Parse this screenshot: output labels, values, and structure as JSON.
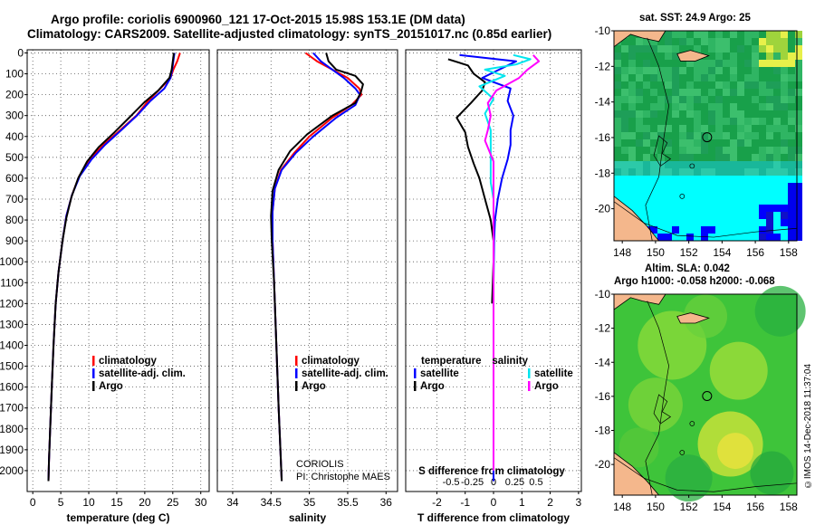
{
  "header": {
    "line1": "Argo profile: coriolis 6900960_121 17-Oct-2015 15.98S 153.1E (DM data)",
    "line2": "Climatology: CARS2009. Satellite-adjusted climatology: synTS_20151017.nc (0.85d earlier)"
  },
  "depth_ticks": [
    0,
    100,
    200,
    300,
    400,
    500,
    600,
    700,
    800,
    900,
    1000,
    1100,
    1200,
    1300,
    1400,
    1500,
    1600,
    1700,
    1800,
    1900,
    2000
  ],
  "colors": {
    "climatology": "#ff0000",
    "satellite": "#0000ff",
    "argo": "#000000",
    "sat_salinity": "#00e5ee",
    "argo_salinity": "#ff00ff",
    "land": "#f4b78c"
  },
  "chart_data": [
    {
      "type": "line",
      "name": "temperature",
      "xlabel": "temperature (deg C)",
      "xlim": [
        -1,
        31.5
      ],
      "ylim": [
        2100,
        -15
      ],
      "xticks": [
        0,
        5,
        10,
        15,
        20,
        25,
        30
      ],
      "legend": {
        "items": [
          {
            "label": "climatology",
            "color": "#ff0000"
          },
          {
            "label": "satellite-adj. clim.",
            "color": "#0000ff"
          },
          {
            "label": "Argo",
            "color": "#000000"
          }
        ]
      },
      "series": [
        {
          "name": "climatology",
          "color": "#ff0000",
          "points": [
            [
              26.3,
              0
            ],
            [
              25.8,
              40
            ],
            [
              25.1,
              80
            ],
            [
              24.6,
              120
            ],
            [
              22.8,
              170
            ],
            [
              20.6,
              230
            ],
            [
              18.5,
              300
            ],
            [
              15.6,
              370
            ],
            [
              12.6,
              440
            ],
            [
              10.2,
              510
            ],
            [
              8.3,
              590
            ],
            [
              7.0,
              680
            ],
            [
              6.0,
              780
            ],
            [
              5.3,
              900
            ],
            [
              4.6,
              1050
            ],
            [
              4.1,
              1200
            ],
            [
              3.7,
              1400
            ],
            [
              3.4,
              1600
            ],
            [
              3.1,
              1800
            ],
            [
              2.9,
              1950
            ],
            [
              2.8,
              2050
            ]
          ]
        },
        {
          "name": "satellite-adj. clim.",
          "color": "#0000ff",
          "points": [
            [
              25.3,
              0
            ],
            [
              25.1,
              40
            ],
            [
              24.9,
              80
            ],
            [
              24.6,
              120
            ],
            [
              23.5,
              170
            ],
            [
              21.0,
              230
            ],
            [
              18.6,
              300
            ],
            [
              15.8,
              370
            ],
            [
              12.9,
              440
            ],
            [
              10.5,
              510
            ],
            [
              8.4,
              590
            ],
            [
              7.0,
              680
            ],
            [
              6.0,
              780
            ],
            [
              5.3,
              900
            ],
            [
              4.6,
              1050
            ],
            [
              4.1,
              1200
            ],
            [
              3.7,
              1400
            ],
            [
              3.4,
              1600
            ],
            [
              3.1,
              1800
            ],
            [
              2.9,
              1950
            ],
            [
              2.8,
              2050
            ]
          ]
        },
        {
          "name": "Argo",
          "color": "#000000",
          "points": [
            [
              25.2,
              0
            ],
            [
              25.0,
              40
            ],
            [
              24.8,
              80
            ],
            [
              24.4,
              120
            ],
            [
              22.4,
              180
            ],
            [
              19.8,
              240
            ],
            [
              17.2,
              310
            ],
            [
              14.6,
              380
            ],
            [
              11.8,
              450
            ],
            [
              9.7,
              520
            ],
            [
              8.1,
              600
            ],
            [
              6.9,
              690
            ],
            [
              6.0,
              790
            ],
            [
              5.3,
              900
            ],
            [
              4.6,
              1050
            ],
            [
              4.1,
              1200
            ],
            [
              3.7,
              1400
            ],
            [
              3.4,
              1600
            ],
            [
              3.1,
              1800
            ],
            [
              2.9,
              1950
            ],
            [
              2.8,
              2050
            ]
          ]
        }
      ]
    },
    {
      "type": "line",
      "name": "salinity",
      "xlabel": "salinity",
      "xlim": [
        33.8,
        36.15
      ],
      "ylim": [
        2100,
        -15
      ],
      "xticks": [
        34,
        34.5,
        35,
        35.5,
        36
      ],
      "xticklabels": [
        "34",
        "34.5",
        "35",
        "35.5",
        "36"
      ],
      "legend": {
        "items": [
          {
            "label": "climatology",
            "color": "#ff0000"
          },
          {
            "label": "satellite-adj. clim.",
            "color": "#0000ff"
          },
          {
            "label": "Argo",
            "color": "#000000"
          }
        ]
      },
      "annotation": [
        "CORIOLIS",
        "PI: Christophe MAES"
      ],
      "series": [
        {
          "name": "climatology",
          "color": "#ff0000",
          "points": [
            [
              34.95,
              0
            ],
            [
              35.1,
              40
            ],
            [
              35.3,
              80
            ],
            [
              35.5,
              120
            ],
            [
              35.65,
              170
            ],
            [
              35.68,
              200
            ],
            [
              35.55,
              250
            ],
            [
              35.3,
              310
            ],
            [
              35.0,
              400
            ],
            [
              34.8,
              480
            ],
            [
              34.63,
              560
            ],
            [
              34.55,
              650
            ],
            [
              34.52,
              760
            ],
            [
              34.52,
              900
            ],
            [
              34.54,
              1100
            ],
            [
              34.57,
              1400
            ],
            [
              34.6,
              1700
            ],
            [
              34.64,
              2050
            ]
          ]
        },
        {
          "name": "satellite-adj. clim.",
          "color": "#0000ff",
          "points": [
            [
              35.05,
              0
            ],
            [
              35.15,
              40
            ],
            [
              35.3,
              80
            ],
            [
              35.45,
              120
            ],
            [
              35.6,
              170
            ],
            [
              35.66,
              200
            ],
            [
              35.6,
              250
            ],
            [
              35.35,
              310
            ],
            [
              35.05,
              400
            ],
            [
              34.82,
              480
            ],
            [
              34.64,
              560
            ],
            [
              34.55,
              650
            ],
            [
              34.52,
              760
            ],
            [
              34.52,
              900
            ],
            [
              34.54,
              1100
            ],
            [
              34.57,
              1400
            ],
            [
              34.6,
              1700
            ],
            [
              34.64,
              2050
            ]
          ]
        },
        {
          "name": "Argo",
          "color": "#000000",
          "points": [
            [
              35.22,
              0
            ],
            [
              35.25,
              40
            ],
            [
              35.35,
              80
            ],
            [
              35.6,
              110
            ],
            [
              35.7,
              150
            ],
            [
              35.67,
              190
            ],
            [
              35.6,
              240
            ],
            [
              35.3,
              300
            ],
            [
              34.97,
              390
            ],
            [
              34.75,
              470
            ],
            [
              34.6,
              560
            ],
            [
              34.52,
              660
            ],
            [
              34.5,
              780
            ],
            [
              34.51,
              900
            ],
            [
              34.54,
              1100
            ],
            [
              34.57,
              1400
            ],
            [
              34.6,
              1700
            ],
            [
              34.64,
              2050
            ]
          ]
        }
      ]
    },
    {
      "type": "line",
      "name": "difference",
      "xlabel": "T difference from climatology",
      "xlabel2": "S difference from climatology",
      "xlim": [
        -3.1,
        3.1
      ],
      "ylim": [
        2100,
        -15
      ],
      "xticks": [
        -2,
        -1,
        0,
        1,
        2,
        3
      ],
      "xticklabels": [
        "-2",
        "-1",
        "0",
        "1",
        "2",
        "3"
      ],
      "xticks2": [
        -1.5,
        -0.75,
        0,
        0.75,
        1.5
      ],
      "xticklabels2": [
        "-0.5",
        "-0.25",
        "0",
        "0.25",
        "0.5"
      ],
      "legend_left": {
        "title": "temperature",
        "items": [
          {
            "label": "satellite",
            "color": "#0000ff"
          },
          {
            "label": "Argo",
            "color": "#000000"
          }
        ]
      },
      "legend_right": {
        "title": "salinity",
        "items": [
          {
            "label": "satellite",
            "color": "#00e5ee"
          },
          {
            "label": "Argo",
            "color": "#ff00ff"
          }
        ]
      },
      "series": [
        {
          "name": "T satellite",
          "color": "#0000ff",
          "points": [
            [
              -1.2,
              10
            ],
            [
              0.8,
              40
            ],
            [
              0.2,
              80
            ],
            [
              -0.4,
              120
            ],
            [
              0.6,
              170
            ],
            [
              0.5,
              230
            ],
            [
              0.7,
              300
            ],
            [
              0.6,
              370
            ],
            [
              0.6,
              440
            ],
            [
              0.5,
              510
            ],
            [
              0.3,
              600
            ],
            [
              0.15,
              700
            ],
            [
              0.05,
              800
            ],
            [
              0.02,
              900
            ],
            [
              0,
              1100
            ],
            [
              0,
              1400
            ],
            [
              0,
              2050
            ]
          ]
        },
        {
          "name": "T Argo",
          "color": "#000000",
          "points": [
            [
              -1.6,
              30
            ],
            [
              -0.9,
              60
            ],
            [
              -0.7,
              100
            ],
            [
              -0.3,
              140
            ],
            [
              -0.4,
              180
            ],
            [
              -0.8,
              240
            ],
            [
              -1.3,
              310
            ],
            [
              -1.0,
              380
            ],
            [
              -0.9,
              450
            ],
            [
              -0.7,
              530
            ],
            [
              -0.5,
              600
            ],
            [
              -0.3,
              700
            ],
            [
              -0.1,
              800
            ],
            [
              0,
              900
            ],
            [
              0,
              1000
            ],
            [
              -0.05,
              1200
            ]
          ]
        },
        {
          "name": "S satellite",
          "color": "#00e5ee",
          "points": [
            [
              0.7,
              10
            ],
            [
              1.3,
              30
            ],
            [
              0.8,
              55
            ],
            [
              -0.3,
              80
            ],
            [
              0.4,
              110
            ],
            [
              -0.5,
              160
            ],
            [
              0,
              220
            ],
            [
              -0.3,
              290
            ],
            [
              -0.1,
              370
            ],
            [
              -0.1,
              450
            ],
            [
              -0.1,
              530
            ],
            [
              -0.1,
              620
            ],
            [
              0,
              700
            ],
            [
              0,
              900
            ],
            [
              0,
              1200
            ],
            [
              0,
              1500
            ],
            [
              0,
              2000
            ]
          ]
        },
        {
          "name": "S Argo",
          "color": "#ff00ff",
          "points": [
            [
              1.4,
              10
            ],
            [
              1.6,
              40
            ],
            [
              1.2,
              80
            ],
            [
              0.9,
              120
            ],
            [
              0.1,
              180
            ],
            [
              -0.2,
              240
            ],
            [
              -0.1,
              300
            ],
            [
              -0.2,
              370
            ],
            [
              -0.3,
              420
            ],
            [
              -0.15,
              470
            ],
            [
              0,
              520
            ],
            [
              0,
              600
            ],
            [
              0,
              700
            ],
            [
              0,
              900
            ],
            [
              0,
              1200
            ],
            [
              0,
              1500
            ],
            [
              0,
              2000
            ]
          ]
        }
      ]
    }
  ],
  "maps": [
    {
      "name": "sst-map",
      "header": "sat. SST: 24.9 Argo: 25",
      "xticks": [
        148,
        150,
        152,
        154,
        156,
        158
      ],
      "yticks": [
        -10,
        -12,
        -14,
        -16,
        -18,
        -20
      ],
      "xticklabels": [
        "148",
        "150",
        "152",
        "154",
        "156",
        "158"
      ],
      "yticklabels": [
        "-10",
        "-12",
        "-14",
        "-16",
        "-18",
        "-20"
      ],
      "lon_range": [
        147.5,
        158.5
      ],
      "lat_range": [
        -21.8,
        -10
      ],
      "argo": [
        153.1,
        -15.98
      ]
    },
    {
      "name": "sla-map",
      "header1": "Altim. SLA: 0.042",
      "header2": "Argo h1000: -0.058 h2000: -0.068",
      "xticks": [
        148,
        150,
        152,
        154,
        156,
        158
      ],
      "yticks": [
        -10,
        -12,
        -14,
        -16,
        -18,
        -20
      ],
      "xticklabels": [
        "148",
        "150",
        "152",
        "154",
        "156",
        "158"
      ],
      "yticklabels": [
        "-10",
        "-12",
        "-14",
        "-16",
        "-18",
        "-20"
      ],
      "lon_range": [
        147.5,
        158.5
      ],
      "lat_range": [
        -21.8,
        -10
      ],
      "argo": [
        153.1,
        -15.98
      ]
    }
  ],
  "stamp": "©IMOS 14-Dec-2018 11:37:04"
}
